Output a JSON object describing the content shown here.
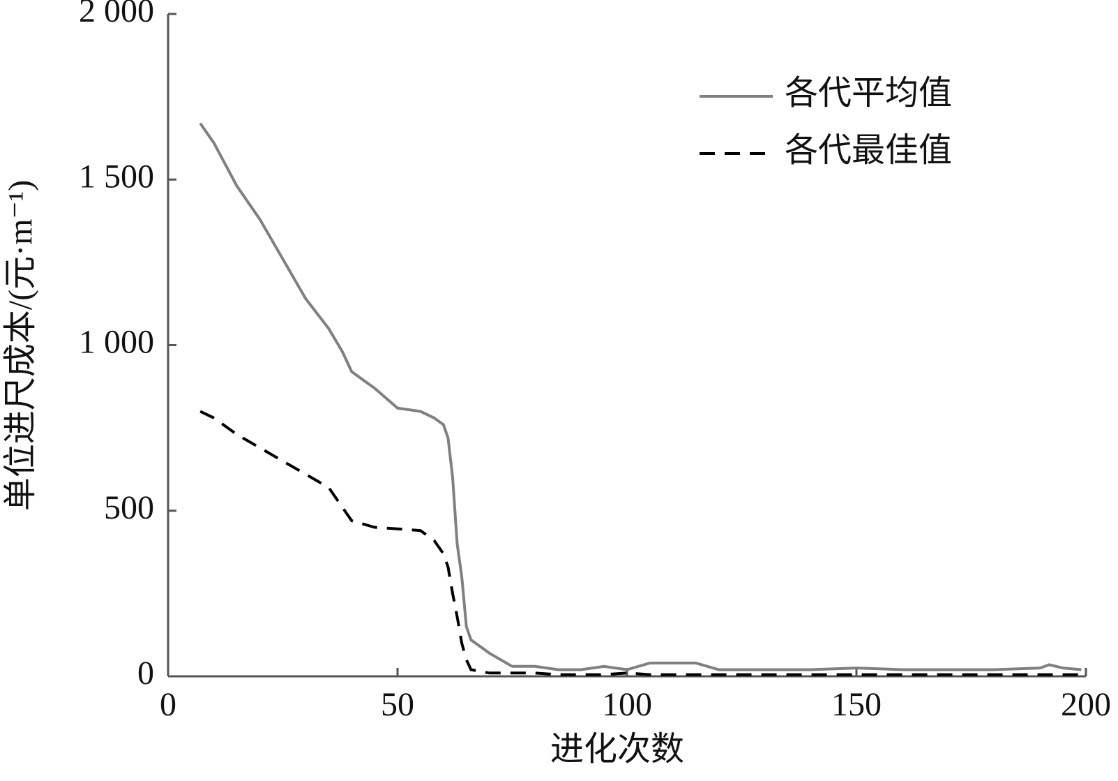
{
  "chart_data": {
    "type": "line",
    "xlabel": "进化次数",
    "ylabel": "单位进尺成本/(元·m⁻¹)",
    "x": [
      7,
      10,
      15,
      20,
      25,
      30,
      35,
      38,
      40,
      45,
      50,
      55,
      58,
      60,
      61,
      62,
      63,
      64,
      65,
      66,
      70,
      75,
      80,
      85,
      90,
      95,
      100,
      105,
      110,
      115,
      120,
      130,
      140,
      150,
      160,
      170,
      180,
      190,
      192,
      195,
      199
    ],
    "series": [
      {
        "name": "各代平均值",
        "color": "#808080",
        "dash": "solid",
        "values": [
          1670,
          1610,
          1480,
          1380,
          1260,
          1140,
          1050,
          980,
          920,
          870,
          810,
          800,
          780,
          760,
          720,
          600,
          400,
          300,
          150,
          110,
          70,
          30,
          30,
          20,
          20,
          30,
          20,
          40,
          40,
          40,
          20,
          20,
          20,
          25,
          20,
          20,
          20,
          25,
          35,
          25,
          20
        ]
      },
      {
        "name": "各代最佳值",
        "color": "#000000",
        "dash": "dashed",
        "values": [
          800,
          780,
          730,
          690,
          650,
          610,
          570,
          510,
          470,
          450,
          445,
          440,
          410,
          370,
          330,
          250,
          180,
          100,
          50,
          20,
          10,
          10,
          10,
          5,
          5,
          5,
          10,
          5,
          5,
          5,
          5,
          5,
          5,
          5,
          5,
          5,
          5,
          5,
          5,
          5,
          5
        ]
      }
    ],
    "xlim": [
      0,
      200
    ],
    "xticks": [
      0,
      50,
      100,
      150,
      200
    ],
    "ylim": [
      0,
      2000
    ],
    "yticks": [
      0,
      500,
      {
        "value": 1000,
        "label": "1 000"
      },
      {
        "value": 1500,
        "label": "1 500"
      },
      {
        "value": 2000,
        "label": "2 000"
      }
    ],
    "legend": "upper right"
  }
}
